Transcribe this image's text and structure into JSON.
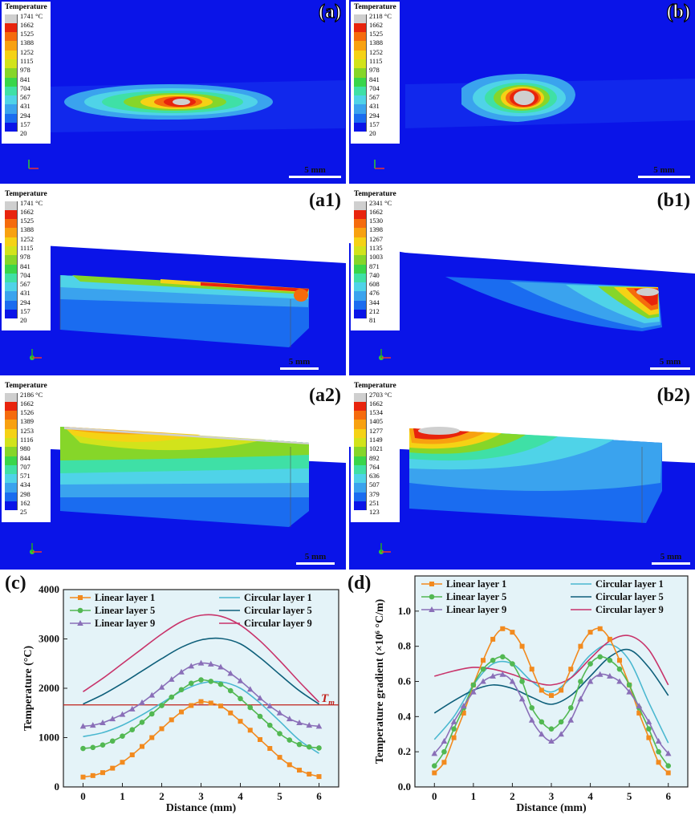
{
  "colors": {
    "blue_bg": "#0a14e8",
    "chart_bg": "#e4f3f8",
    "colormap": [
      "#0a14e8",
      "#1a6cf0",
      "#3aa3ee",
      "#4fd3e8",
      "#3fe0a6",
      "#39d64a",
      "#86d629",
      "#d2e31b",
      "#f5d215",
      "#f8a110",
      "#f56b0d",
      "#e8240d",
      "#cfcfcf"
    ],
    "tm_line": "#c0201a"
  },
  "panels": [
    {
      "id": "a",
      "label": "(a)",
      "outline": true,
      "legend_title": "Temperature",
      "legend_values": [
        "1741 °C",
        "1662",
        "1525",
        "1388",
        "1252",
        "1115",
        "978",
        "841",
        "704",
        "567",
        "431",
        "294",
        "157",
        "20"
      ],
      "scale": "5 mm"
    },
    {
      "id": "b",
      "label": "(b)",
      "outline": true,
      "legend_title": "Temperature",
      "legend_values": [
        "2118 °C",
        "1662",
        "1525",
        "1388",
        "1252",
        "1115",
        "978",
        "841",
        "704",
        "567",
        "431",
        "294",
        "157",
        "20"
      ],
      "scale": "5 mm"
    },
    {
      "id": "a1",
      "label": "(a1)",
      "outline": false,
      "legend_title": "Temperature",
      "legend_values": [
        "1741 °C",
        "1662",
        "1525",
        "1388",
        "1252",
        "1115",
        "978",
        "841",
        "704",
        "567",
        "431",
        "294",
        "157",
        "20"
      ],
      "scale": "5 mm"
    },
    {
      "id": "b1",
      "label": "(b1)",
      "outline": false,
      "legend_title": "Temperature",
      "legend_values": [
        "2341 °C",
        "1662",
        "1530",
        "1398",
        "1267",
        "1135",
        "1003",
        "871",
        "740",
        "608",
        "476",
        "344",
        "212",
        "81"
      ],
      "scale": "5 mm"
    },
    {
      "id": "a2",
      "label": "(a2)",
      "outline": false,
      "legend_title": "Temperature",
      "legend_values": [
        "2186 °C",
        "1662",
        "1526",
        "1389",
        "1253",
        "1116",
        "980",
        "844",
        "707",
        "571",
        "434",
        "298",
        "162",
        "25"
      ],
      "scale": "5 mm"
    },
    {
      "id": "b2",
      "label": "(b2)",
      "outline": false,
      "legend_title": "Temperature",
      "legend_values": [
        "2703 °C",
        "1662",
        "1534",
        "1405",
        "1277",
        "1149",
        "1021",
        "892",
        "764",
        "636",
        "507",
        "379",
        "251",
        "123"
      ],
      "scale": "5 mm"
    }
  ],
  "chart_data": [
    {
      "id": "c",
      "panel_label": "(c)",
      "type": "line",
      "xlabel": "Distance (mm)",
      "ylabel": "Temperature (°C)",
      "xlim": [
        -0.5,
        6.5
      ],
      "ylim": [
        0,
        4000
      ],
      "xticks": [
        "0",
        "1",
        "2",
        "3",
        "4",
        "5",
        "6"
      ],
      "yticks": [
        "0",
        "1000",
        "2000",
        "3000",
        "4000"
      ],
      "hline": {
        "value": 1662,
        "label": "T",
        "label_sub": "m"
      },
      "legend": [
        {
          "name": "Linear layer 1",
          "color": "#f28a1e",
          "marker": "square"
        },
        {
          "name": "Circular layer 1",
          "color": "#4ab8d0",
          "marker": "none"
        },
        {
          "name": "Linear layer 5",
          "color": "#52b852",
          "marker": "circle"
        },
        {
          "name": "Circular layer 5",
          "color": "#0e5f7a",
          "marker": "none"
        },
        {
          "name": "Linear layer 9",
          "color": "#8a6fb8",
          "marker": "triangle"
        },
        {
          "name": "Circular layer 9",
          "color": "#c8336a",
          "marker": "none"
        }
      ],
      "x": [
        0,
        0.25,
        0.5,
        0.75,
        1,
        1.25,
        1.5,
        1.75,
        2,
        2.25,
        2.5,
        2.75,
        3,
        3.25,
        3.5,
        3.75,
        4,
        4.25,
        4.5,
        4.75,
        5,
        5.25,
        5.5,
        5.75,
        6
      ],
      "series": [
        {
          "name": "Linear layer 1",
          "values": [
            200,
            230,
            290,
            380,
            500,
            650,
            820,
            1000,
            1180,
            1360,
            1520,
            1650,
            1730,
            1700,
            1640,
            1500,
            1330,
            1150,
            960,
            780,
            600,
            450,
            340,
            260,
            210
          ]
        },
        {
          "name": "Linear layer 5",
          "values": [
            780,
            800,
            850,
            930,
            1030,
            1160,
            1310,
            1480,
            1650,
            1820,
            1970,
            2100,
            2170,
            2140,
            2080,
            1950,
            1790,
            1610,
            1430,
            1250,
            1080,
            950,
            860,
            810,
            790
          ]
        },
        {
          "name": "Linear layer 9",
          "values": [
            1230,
            1250,
            1300,
            1380,
            1470,
            1580,
            1710,
            1860,
            2020,
            2180,
            2330,
            2450,
            2510,
            2490,
            2430,
            2300,
            2150,
            1980,
            1800,
            1640,
            1500,
            1380,
            1300,
            1250,
            1230
          ]
        }
      ],
      "curves": [
        {
          "name": "Circular layer 1",
          "x": [
            0,
            0.5,
            1,
            1.5,
            2,
            2.5,
            3,
            3.5,
            4,
            4.5,
            5,
            5.5,
            6
          ],
          "values": [
            1020,
            1100,
            1250,
            1460,
            1700,
            1940,
            2100,
            2130,
            2000,
            1700,
            1330,
            950,
            680
          ]
        },
        {
          "name": "Circular layer 5",
          "x": [
            0,
            0.5,
            1,
            1.5,
            2,
            2.5,
            3,
            3.5,
            4,
            4.5,
            5,
            5.5,
            6
          ],
          "values": [
            1680,
            1870,
            2100,
            2350,
            2600,
            2830,
            2980,
            3010,
            2900,
            2620,
            2280,
            1950,
            1680
          ]
        },
        {
          "name": "Circular layer 9",
          "x": [
            0,
            0.5,
            1,
            1.5,
            2,
            2.5,
            3,
            3.5,
            4,
            4.5,
            5,
            5.5,
            6
          ],
          "values": [
            1930,
            2200,
            2500,
            2800,
            3100,
            3350,
            3480,
            3460,
            3280,
            2960,
            2560,
            2130,
            1720
          ]
        }
      ]
    },
    {
      "id": "d",
      "panel_label": "(d)",
      "type": "line",
      "xlabel": "Distance (mm)",
      "ylabel": "Temperature gradient (×10⁶ °C/m)",
      "xlim": [
        -0.5,
        6.5
      ],
      "ylim": [
        0,
        1.2
      ],
      "xticks": [
        "0",
        "1",
        "2",
        "3",
        "4",
        "5",
        "6"
      ],
      "yticks": [
        "0.0",
        "0.2",
        "0.4",
        "0.6",
        "0.8",
        "1.0"
      ],
      "legend": [
        {
          "name": "Linear layer 1",
          "color": "#f28a1e",
          "marker": "square"
        },
        {
          "name": "Circular layer 1",
          "color": "#4ab8d0",
          "marker": "none"
        },
        {
          "name": "Linear layer 5",
          "color": "#52b852",
          "marker": "circle"
        },
        {
          "name": "Circular layer 5",
          "color": "#0e5f7a",
          "marker": "none"
        },
        {
          "name": "Linear layer 9",
          "color": "#8a6fb8",
          "marker": "triangle"
        },
        {
          "name": "Circular layer 9",
          "color": "#c8336a",
          "marker": "none"
        }
      ],
      "x": [
        0,
        0.25,
        0.5,
        0.75,
        1,
        1.25,
        1.5,
        1.75,
        2,
        2.25,
        2.5,
        2.75,
        3,
        3.25,
        3.5,
        3.75,
        4,
        4.25,
        4.5,
        4.75,
        5,
        5.25,
        5.5,
        5.75,
        6
      ],
      "series": [
        {
          "name": "Linear layer 1",
          "values": [
            0.08,
            0.14,
            0.28,
            0.42,
            0.58,
            0.72,
            0.84,
            0.9,
            0.88,
            0.8,
            0.67,
            0.55,
            0.52,
            0.55,
            0.67,
            0.8,
            0.88,
            0.9,
            0.84,
            0.72,
            0.58,
            0.42,
            0.28,
            0.14,
            0.08
          ]
        },
        {
          "name": "Linear layer 5",
          "values": [
            0.12,
            0.2,
            0.33,
            0.45,
            0.58,
            0.67,
            0.72,
            0.74,
            0.7,
            0.6,
            0.45,
            0.37,
            0.33,
            0.37,
            0.45,
            0.6,
            0.7,
            0.74,
            0.72,
            0.67,
            0.58,
            0.45,
            0.33,
            0.2,
            0.12
          ]
        },
        {
          "name": "Linear layer 9",
          "values": [
            0.19,
            0.26,
            0.37,
            0.46,
            0.54,
            0.6,
            0.63,
            0.64,
            0.6,
            0.5,
            0.38,
            0.3,
            0.26,
            0.3,
            0.38,
            0.5,
            0.6,
            0.64,
            0.63,
            0.6,
            0.54,
            0.46,
            0.37,
            0.26,
            0.19
          ]
        }
      ],
      "curves": [
        {
          "name": "Circular layer 1",
          "x": [
            0,
            0.5,
            1,
            1.5,
            2,
            2.5,
            3,
            3.5,
            4,
            4.5,
            5,
            5.5,
            6
          ],
          "values": [
            0.27,
            0.4,
            0.58,
            0.7,
            0.7,
            0.6,
            0.54,
            0.62,
            0.75,
            0.81,
            0.72,
            0.48,
            0.25
          ]
        },
        {
          "name": "Circular layer 5",
          "x": [
            0,
            0.5,
            1,
            1.5,
            2,
            2.5,
            3,
            3.5,
            4,
            4.5,
            5,
            5.5,
            6
          ],
          "values": [
            0.42,
            0.49,
            0.55,
            0.58,
            0.56,
            0.51,
            0.47,
            0.52,
            0.63,
            0.74,
            0.78,
            0.68,
            0.52
          ]
        },
        {
          "name": "Circular layer 9",
          "x": [
            0,
            0.5,
            1,
            1.5,
            2,
            2.5,
            3,
            3.5,
            4,
            4.5,
            5,
            5.5,
            6
          ],
          "values": [
            0.63,
            0.66,
            0.68,
            0.67,
            0.64,
            0.6,
            0.58,
            0.62,
            0.73,
            0.83,
            0.86,
            0.78,
            0.58
          ]
        }
      ]
    }
  ]
}
